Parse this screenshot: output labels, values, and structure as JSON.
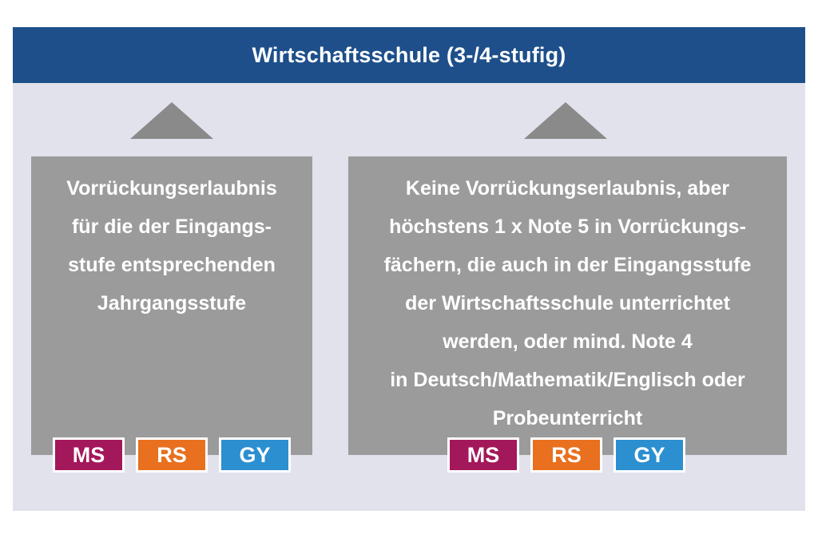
{
  "header": {
    "title": "Wirtschaftsschule (3-/4-stufig)"
  },
  "colors": {
    "header_bg": "#1e4f8a",
    "panel_bg": "#e2e2ec",
    "box_bg": "#9b9b9b",
    "arrow": "#8a8a8a",
    "ms": "#a3185a",
    "rs": "#e8701f",
    "gy": "#2b8fd0"
  },
  "left_box": {
    "lines": [
      "Vorrückungserlaubnis",
      "für die der Eingangs-",
      "stufe entsprechenden",
      "Jahrgangsstufe"
    ],
    "badges": [
      {
        "label": "MS",
        "color": "#a3185a"
      },
      {
        "label": "RS",
        "color": "#e8701f"
      },
      {
        "label": "GY",
        "color": "#2b8fd0"
      }
    ]
  },
  "right_box": {
    "lines": [
      "Keine Vorrückungserlaubnis, aber",
      "höchstens 1 x Note 5 in Vorrückungs-",
      "fächern, die auch in der Eingangsstufe",
      "der Wirtschaftsschule unterrichtet",
      "werden, oder mind. Note 4",
      "in Deutsch/Mathematik/Englisch oder",
      "Probeunterricht"
    ],
    "badges": [
      {
        "label": "MS",
        "color": "#a3185a"
      },
      {
        "label": "RS",
        "color": "#e8701f"
      },
      {
        "label": "GY",
        "color": "#2b8fd0"
      }
    ]
  }
}
